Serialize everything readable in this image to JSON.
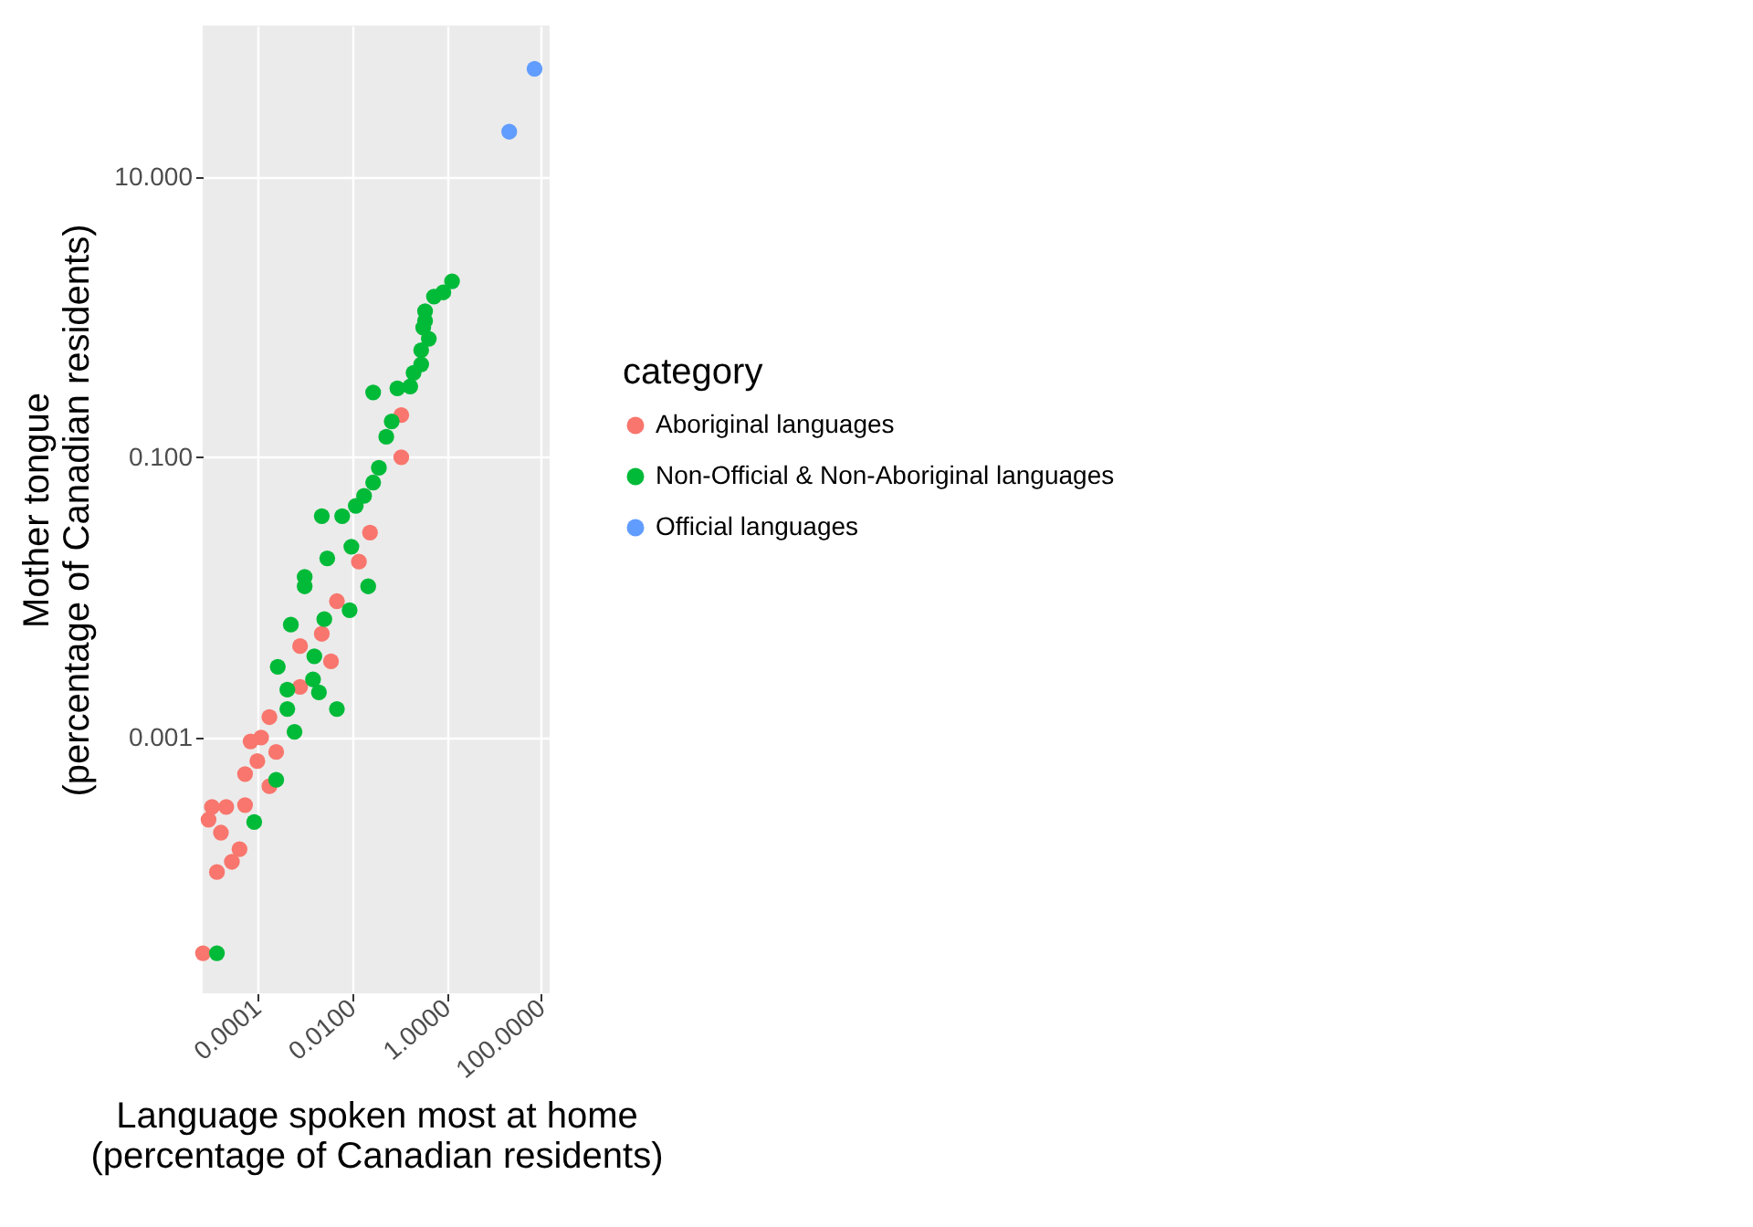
{
  "chart_data": {
    "type": "scatter",
    "xlabel": "Language spoken most at home\n(percentage of Canadian residents)",
    "ylabel": "Mother tongue\n(percentage of Canadian residents)",
    "legend_title": "category",
    "log": "xy",
    "grid": true,
    "legend": "right",
    "marker": "circle",
    "xlim": [
      7e-06,
      150
    ],
    "ylim": [
      1.5e-05,
      120
    ],
    "xticks": [
      {
        "value": 0.0001,
        "label": "0.0001"
      },
      {
        "value": 0.01,
        "label": "0.0100"
      },
      {
        "value": 1,
        "label": "1.0000"
      },
      {
        "value": 100,
        "label": "100.0000"
      }
    ],
    "yticks": [
      {
        "value": 0.001,
        "label": "0.001"
      },
      {
        "value": 0.1,
        "label": "0.100"
      },
      {
        "value": 10,
        "label": "10.000"
      }
    ],
    "series": [
      {
        "name": "Aboriginal languages",
        "color": "#f8766d",
        "x": [
          0.11,
          0.11,
          0.024,
          0.014,
          0.0048,
          0.0023,
          0.0008,
          0.0036,
          0.0008,
          0.00018,
          7.2e-05,
          0.00025,
          5.5e-05,
          0.00018,
          2.2e-05,
          5.5e-05,
          9.3e-06,
          1.7e-05,
          4.2e-05,
          2.9e-05,
          1.4e-05,
          7.1e-06,
          0.00012,
          0.0001,
          1.1e-05
        ],
        "values": [
          0.2,
          0.1,
          0.029,
          0.018,
          0.0094,
          0.0055,
          0.0045,
          0.0035,
          0.0023,
          0.0014,
          0.00094,
          0.00079,
          0.00055,
          0.00045,
          0.00032,
          0.00033,
          0.00026,
          0.00021,
          0.00016,
          0.00013,
          0.00011,
          2.9e-05,
          0.001,
          0.00068,
          0.00032
        ]
      },
      {
        "name": "Non-Official & Non-Aboriginal languages",
        "color": "#00ba38",
        "x": [
          1.3,
          0.85,
          0.54,
          0.35,
          0.35,
          0.32,
          0.42,
          0.29,
          0.29,
          0.2,
          0.17,
          0.091,
          0.028,
          0.069,
          0.053,
          0.037,
          0.028,
          0.018,
          0.012,
          0.0062,
          0.0023,
          0.0097,
          0.003,
          0.022,
          0.001,
          0.001,
          0.0089,
          0.0026,
          0.00051,
          0.0016,
          0.00027,
          0.00043,
          0.0015,
          0.0048,
          0.002,
          0.00043,
          0.00061,
          0.00025,
          8.6e-05,
          1.4e-05
        ],
        "values": [
          1.8,
          1.5,
          1.4,
          1.1,
          0.94,
          0.84,
          0.7,
          0.58,
          0.46,
          0.4,
          0.32,
          0.31,
          0.29,
          0.18,
          0.14,
          0.084,
          0.066,
          0.053,
          0.045,
          0.038,
          0.038,
          0.023,
          0.019,
          0.012,
          0.014,
          0.012,
          0.0081,
          0.007,
          0.0064,
          0.0038,
          0.0032,
          0.0022,
          0.0026,
          0.0016,
          0.0021,
          0.0016,
          0.0011,
          0.0005,
          0.00025,
          2.9e-05
        ]
      },
      {
        "name": "Official languages",
        "color": "#619cff",
        "x": [
          72,
          21
        ],
        "values": [
          59,
          21
        ]
      }
    ]
  }
}
